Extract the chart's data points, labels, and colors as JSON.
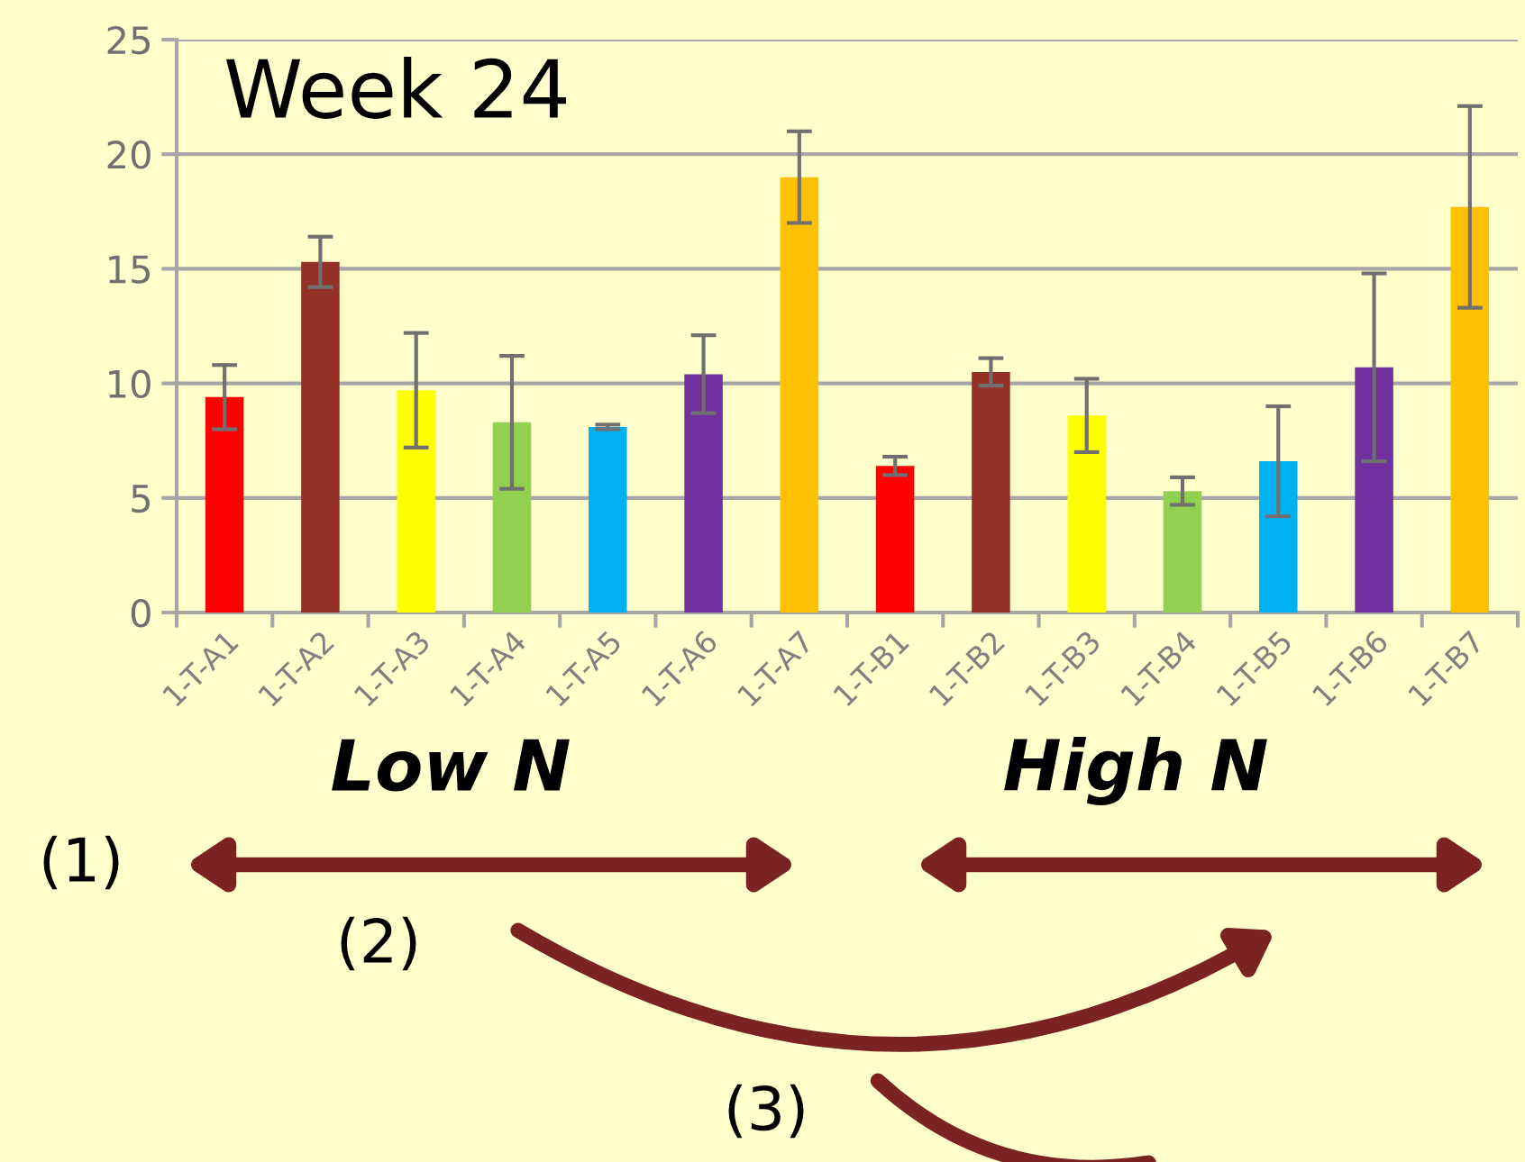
{
  "chart_data": {
    "type": "bar",
    "title": "Week 24",
    "categories": [
      "1-T-A1",
      "1-T-A2",
      "1-T-A3",
      "1-T-A4",
      "1-T-A5",
      "1-T-A6",
      "1-T-A7",
      "1-T-B1",
      "1-T-B2",
      "1-T-B3",
      "1-T-B4",
      "1-T-B5",
      "1-T-B6",
      "1-T-B7"
    ],
    "values": [
      9.4,
      15.3,
      9.7,
      8.3,
      8.1,
      10.4,
      19.0,
      6.4,
      10.5,
      8.6,
      5.3,
      6.6,
      10.7,
      17.7
    ],
    "errors": [
      1.4,
      1.1,
      2.5,
      2.9,
      0.1,
      1.7,
      2.0,
      0.4,
      0.6,
      1.6,
      0.6,
      2.4,
      4.1,
      4.4
    ],
    "colors": [
      "#ff0000",
      "#943126",
      "#ffff00",
      "#92d050",
      "#00b0f0",
      "#7030a0",
      "#ffc000",
      "#ff0000",
      "#943126",
      "#ffff00",
      "#92d050",
      "#00b0f0",
      "#7030a0",
      "#ffc000"
    ],
    "ylim": [
      0,
      25
    ],
    "yticks": [
      0,
      5,
      10,
      15,
      20,
      25
    ],
    "grid": "y",
    "annotations": [
      "Low N",
      "High N",
      "(1)",
      "(2)",
      "(3)"
    ]
  }
}
